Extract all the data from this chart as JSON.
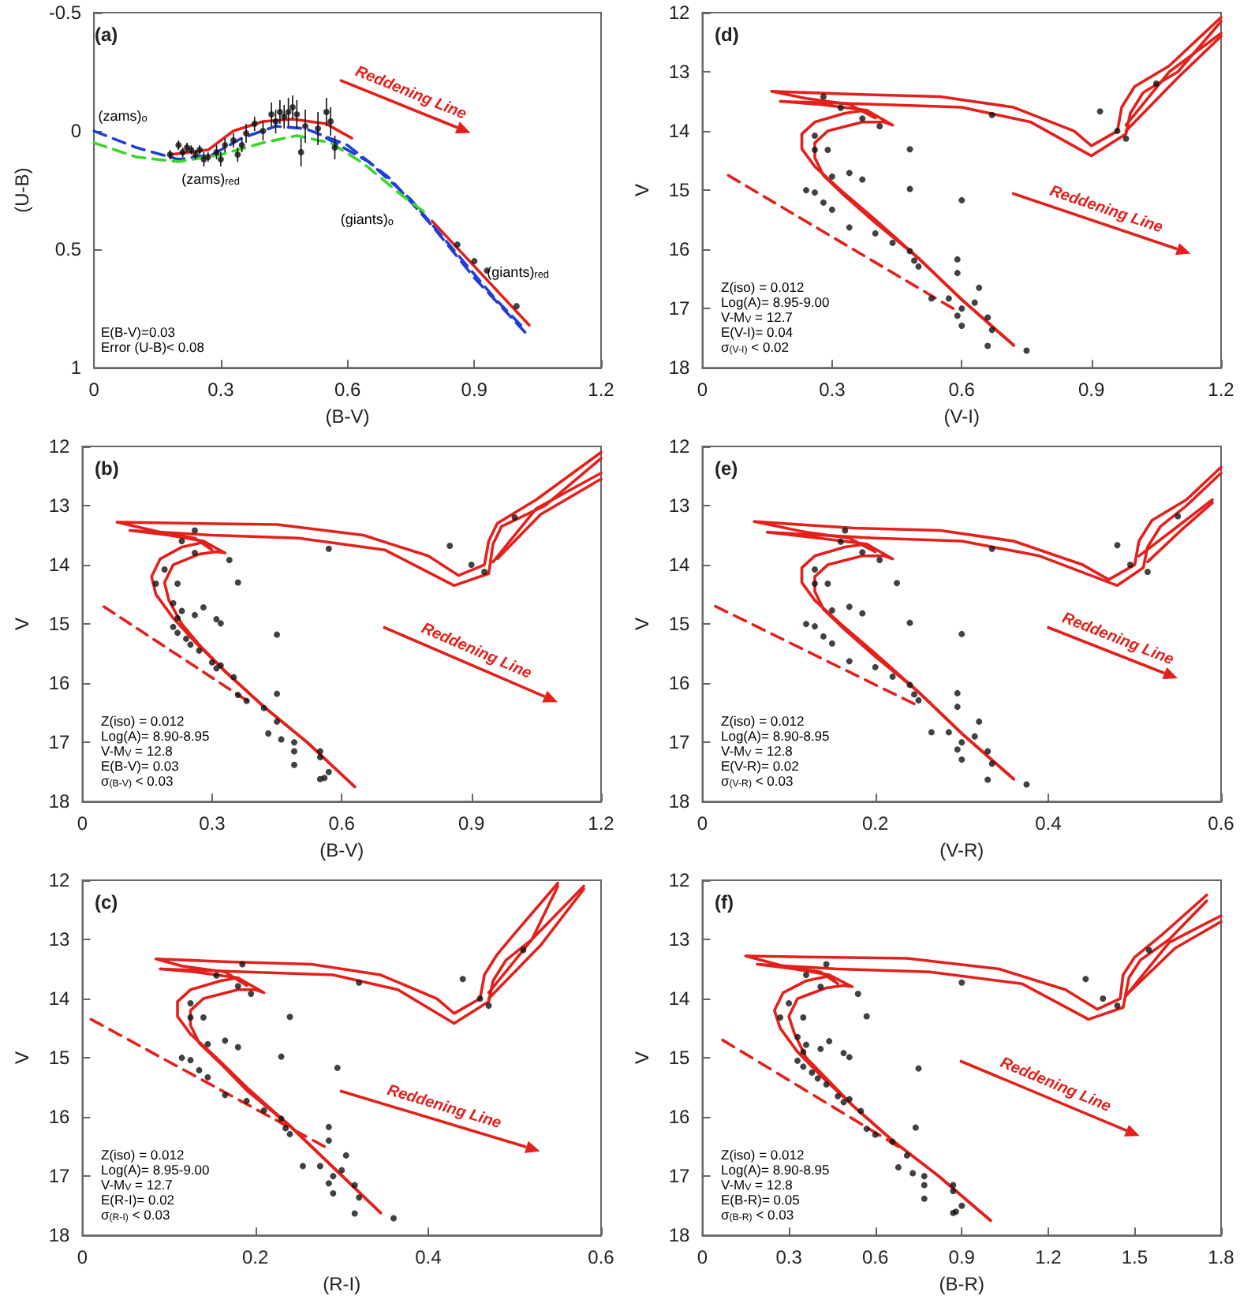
{
  "chart_data": [
    {
      "type": "scatter",
      "title": "(a)",
      "xlabel": "(B-V)",
      "ylabel": "(U-B)",
      "xlim": [
        0,
        1.2
      ],
      "ylim": [
        1,
        -0.5
      ],
      "xticks": [
        0,
        0.3,
        0.6,
        0.9,
        1.2
      ],
      "yticks": [
        -0.5,
        0,
        0.5,
        1
      ],
      "annotations": [
        "E(B-V)=0.03",
        "Error (U-B)< 0.08",
        {
          "text": "(zams)$_{o}$",
          "x": 0.01,
          "y": -0.03
        },
        {
          "text": "(zams)$_{red}$",
          "x": 0.2,
          "y": 0.13
        },
        {
          "text": "(giants)$_{o}$",
          "x": 0.8,
          "y": 0.4
        },
        {
          "text": "(giants)$_{red}$",
          "x": 0.93,
          "y": 0.63
        },
        "Reddening Line"
      ],
      "series": [
        {
          "type": "scatter",
          "color": "#111111",
          "marker": "circle",
          "x": [
            0.18,
            0.2,
            0.21,
            0.22,
            0.23,
            0.24,
            0.25,
            0.26,
            0.27,
            0.29,
            0.3,
            0.31,
            0.33,
            0.34,
            0.35,
            0.36,
            0.38,
            0.4,
            0.42,
            0.43,
            0.44,
            0.45,
            0.46,
            0.47,
            0.48,
            0.49,
            0.5,
            0.53,
            0.55,
            0.56,
            0.57
          ],
          "values": [
            0.1,
            0.06,
            0.09,
            0.07,
            0.08,
            0.1,
            0.08,
            0.12,
            0.11,
            0.09,
            0.12,
            0.06,
            0.04,
            0.1,
            0.06,
            0.01,
            -0.03,
            0.0,
            -0.07,
            -0.04,
            -0.08,
            -0.06,
            -0.08,
            -0.1,
            -0.07,
            0.09,
            -0.02,
            -0.01,
            -0.08,
            -0.04,
            0.07
          ],
          "errors": [
            0.02,
            0.02,
            0.02,
            0.02,
            0.02,
            0.02,
            0.02,
            0.03,
            0.02,
            0.03,
            0.03,
            0.03,
            0.03,
            0.03,
            0.03,
            0.04,
            0.03,
            0.04,
            0.05,
            0.05,
            0.05,
            0.05,
            0.06,
            0.05,
            0.06,
            0.06,
            0.07,
            0.07,
            0.06,
            0.06,
            0.05
          ]
        },
        {
          "type": "scatter",
          "color": "#111111",
          "marker": "circle",
          "x": [
            0.86,
            0.9,
            0.93,
            1.0
          ],
          "values": [
            0.48,
            0.55,
            0.59,
            0.74
          ]
        },
        {
          "type": "line",
          "color": "#e3201b",
          "line_style": "solid",
          "marker": "none",
          "x": [
            0.18,
            0.27,
            0.33,
            0.4,
            0.47,
            0.55,
            0.61,
            null,
            0.8,
            1.03
          ],
          "values": [
            0.1,
            0.08,
            0.0,
            -0.04,
            -0.05,
            -0.03,
            0.03,
            null,
            0.38,
            0.82
          ]
        },
        {
          "type": "line",
          "color": "#1f3fd6",
          "line_style": "dashed",
          "marker": "none",
          "x": [
            0,
            0.1,
            0.2,
            0.28,
            0.35,
            0.43,
            0.5,
            0.6,
            0.7,
            0.8,
            0.9,
            1.02
          ],
          "values": [
            0,
            0.07,
            0.12,
            0.1,
            0.03,
            -0.02,
            -0.01,
            0.06,
            0.2,
            0.4,
            0.62,
            0.85
          ]
        },
        {
          "type": "line",
          "color": "#1f3fd6",
          "line_style": "dashed",
          "marker": "none",
          "x": [
            0.55,
            0.65,
            0.75,
            0.85,
            0.95,
            1.01
          ],
          "values": [
            0.03,
            0.13,
            0.29,
            0.5,
            0.71,
            0.82
          ]
        },
        {
          "type": "line",
          "color": "#3bd62a",
          "line_style": "dashed",
          "marker": "none",
          "x": [
            0,
            0.1,
            0.2,
            0.3,
            0.4,
            0.48,
            0.56,
            0.64,
            0.72,
            0.78
          ],
          "values": [
            0.05,
            0.11,
            0.13,
            0.1,
            0.05,
            0.02,
            0.05,
            0.14,
            0.26,
            0.34
          ]
        }
      ]
    },
    {
      "type": "scatter",
      "title": "(d)",
      "xlabel": "(V-I)",
      "ylabel": "V",
      "xlim": [
        0,
        1.2
      ],
      "ylim": [
        18,
        12
      ],
      "xticks": [
        0,
        0.3,
        0.6,
        0.9,
        1.2
      ],
      "yticks": [
        12,
        13,
        14,
        15,
        16,
        17,
        18
      ],
      "annotations": [
        "Z(iso) = 0.012",
        "Log(A)= 8.95-9.00",
        "V-M$_{V}$ = 12.7",
        "E(V-I)= 0.04",
        "σ$_{(V-I)}$ < 0.02",
        "Reddening Line"
      ],
      "series": [
        {
          "type": "scatter",
          "color": "#111111",
          "marker": "circle",
          "x": [
            0.28,
            0.32,
            0.37,
            0.41,
            0.67,
            0.26,
            0.26,
            0.29,
            0.48,
            0.34,
            0.37,
            0.3,
            0.24,
            0.26,
            0.28,
            0.3,
            0.48,
            0.6,
            0.34,
            0.4,
            0.44,
            0.48,
            0.49,
            0.59,
            0.59,
            0.5,
            0.53,
            0.57,
            0.64,
            0.63,
            0.6,
            0.59,
            0.66,
            0.6,
            0.67,
            0.66,
            0.75
          ],
          "values": [
            13.42,
            13.61,
            13.79,
            13.92,
            13.73,
            14.08,
            14.32,
            14.32,
            14.31,
            14.71,
            14.82,
            14.77,
            15.0,
            15.04,
            15.21,
            15.33,
            14.98,
            15.17,
            15.63,
            15.73,
            15.89,
            16.03,
            16.19,
            16.17,
            16.4,
            16.29,
            16.83,
            16.83,
            16.65,
            16.9,
            17.0,
            17.12,
            17.15,
            17.29,
            17.36,
            17.63,
            17.71
          ]
        },
        {
          "type": "scatter",
          "color": "#111111",
          "marker": "circle",
          "x": [
            0.92,
            0.96,
            0.98,
            1.05
          ],
          "values": [
            13.67,
            14.0,
            14.13,
            13.2
          ]
        },
        {
          "type": "line",
          "color": "#e3201b",
          "line_style": "solid",
          "marker": "none",
          "x": [
            0.72,
            0.6,
            0.5,
            0.4,
            0.32,
            0.26,
            0.23,
            0.23,
            0.26,
            0.33,
            0.38,
            0.4,
            0.34,
            0.24,
            0.16,
            0.35,
            0.55,
            0.72,
            0.86,
            0.9,
            0.96,
            0.97,
            1.0,
            1.08,
            1.2,
            null,
            1.2,
            1.08,
            0.98
          ],
          "values": [
            17.62,
            16.85,
            16.15,
            15.5,
            15.0,
            14.6,
            14.3,
            14.05,
            13.85,
            13.7,
            13.65,
            13.78,
            13.55,
            13.45,
            13.33,
            13.38,
            13.42,
            13.6,
            14.0,
            14.25,
            14.0,
            13.6,
            13.25,
            12.9,
            12.08,
            null,
            12.35,
            13.0,
            13.9
          ]
        },
        {
          "type": "line",
          "color": "#e3201b",
          "line_style": "solid",
          "marker": "none",
          "x": [
            0.72,
            0.6,
            0.5,
            0.4,
            0.33,
            0.28,
            0.26,
            0.26,
            0.29,
            0.37,
            0.42,
            0.44,
            0.38,
            0.27,
            0.18,
            0.4,
            0.6,
            0.76,
            0.9,
            0.98,
            0.99,
            1.02,
            1.1,
            1.2,
            null,
            1.2,
            1.1,
            0.98
          ],
          "values": [
            17.62,
            16.85,
            16.15,
            15.55,
            15.1,
            14.75,
            14.45,
            14.2,
            14.0,
            13.85,
            13.85,
            13.9,
            13.65,
            13.55,
            13.5,
            13.55,
            13.6,
            13.85,
            14.42,
            14.05,
            13.7,
            13.35,
            13.0,
            12.15,
            null,
            12.4,
            13.1,
            14.0
          ]
        },
        {
          "type": "line",
          "color": "#e3201b",
          "line_style": "dashed",
          "marker": "none",
          "x": [
            0.06,
            0.58
          ],
          "values": [
            14.75,
            17.0
          ]
        }
      ]
    },
    {
      "type": "scatter",
      "title": "(b)",
      "xlabel": "(B-V)",
      "ylabel": "V",
      "xlim": [
        0,
        1.2
      ],
      "ylim": [
        18,
        12
      ],
      "xticks": [
        0,
        0.3,
        0.6,
        0.9,
        1.2
      ],
      "yticks": [
        12,
        13,
        14,
        15,
        16,
        17,
        18
      ],
      "annotations": [
        "Z(iso) = 0.012",
        "Log(A)= 8.90-8.95",
        "V-M$_{V}$ = 12.8",
        "E(B-V)= 0.03",
        "σ$_{(B-V)}$ < 0.03",
        "Reddening Line"
      ],
      "series": [
        {
          "type": "scatter",
          "color": "#111111",
          "marker": "circle",
          "x": [
            0.26,
            0.23,
            0.26,
            0.19,
            0.17,
            0.22,
            0.34,
            0.36,
            0.57,
            0.28,
            0.23,
            0.26,
            0.31,
            0.32,
            0.21,
            0.22,
            0.21,
            0.22,
            0.24,
            0.25,
            0.27,
            0.45,
            0.3,
            0.32,
            0.31,
            0.35,
            0.36,
            0.38,
            0.45,
            0.42,
            0.45,
            0.43,
            0.46,
            0.49,
            0.49,
            0.55,
            0.55,
            0.49,
            0.57,
            0.56,
            0.55
          ],
          "values": [
            13.42,
            13.6,
            13.8,
            14.08,
            14.32,
            14.32,
            13.92,
            14.3,
            13.73,
            14.72,
            14.78,
            14.85,
            14.92,
            14.99,
            14.65,
            14.9,
            15.05,
            15.15,
            15.25,
            15.35,
            15.45,
            15.18,
            15.65,
            15.7,
            15.75,
            15.9,
            16.2,
            16.3,
            16.18,
            16.42,
            16.65,
            16.85,
            16.95,
            17.0,
            17.15,
            17.15,
            17.25,
            17.38,
            17.5,
            17.6,
            17.62
          ]
        },
        {
          "type": "scatter",
          "color": "#111111",
          "marker": "circle",
          "x": [
            0.85,
            0.9,
            0.93,
            1.0
          ],
          "values": [
            13.68,
            14.0,
            14.12,
            13.2
          ]
        },
        {
          "type": "line",
          "color": "#e3201b",
          "line_style": "solid",
          "marker": "none",
          "x": [
            0.63,
            0.52,
            0.42,
            0.33,
            0.26,
            0.21,
            0.17,
            0.16,
            0.18,
            0.23,
            0.28,
            0.3,
            0.26,
            0.18,
            0.08,
            0.25,
            0.45,
            0.65,
            0.8,
            0.87,
            0.93,
            0.94,
            0.96,
            1.05,
            1.2,
            null,
            1.2,
            1.05,
            0.95
          ],
          "values": [
            17.75,
            17.0,
            16.4,
            15.8,
            15.3,
            14.9,
            14.5,
            14.2,
            13.9,
            13.7,
            13.62,
            13.75,
            13.55,
            13.45,
            13.28,
            13.3,
            13.32,
            13.5,
            13.85,
            14.18,
            14.0,
            13.6,
            13.3,
            12.9,
            12.1,
            null,
            12.45,
            13.05,
            13.95
          ]
        },
        {
          "type": "line",
          "color": "#e3201b",
          "line_style": "solid",
          "marker": "none",
          "x": [
            0.63,
            0.52,
            0.42,
            0.33,
            0.27,
            0.23,
            0.2,
            0.19,
            0.21,
            0.27,
            0.31,
            0.33,
            0.28,
            0.2,
            0.11,
            0.3,
            0.5,
            0.7,
            0.86,
            0.94,
            0.95,
            0.97,
            1.07,
            1.2,
            null,
            1.2,
            1.06,
            0.96
          ],
          "values": [
            17.75,
            17.0,
            16.4,
            15.8,
            15.35,
            15.0,
            14.6,
            14.3,
            14.0,
            13.82,
            13.78,
            13.8,
            13.6,
            13.5,
            13.42,
            13.5,
            13.55,
            13.75,
            14.35,
            14.15,
            13.65,
            13.35,
            13.0,
            12.2,
            null,
            12.55,
            13.15,
            13.9
          ]
        },
        {
          "type": "line",
          "color": "#e3201b",
          "line_style": "dashed",
          "marker": "none",
          "x": [
            0.05,
            0.38
          ],
          "values": [
            14.71,
            16.29
          ]
        }
      ]
    },
    {
      "type": "scatter",
      "title": "(e)",
      "xlabel": "(V-R)",
      "ylabel": "V",
      "xlim": [
        0,
        0.6
      ],
      "ylim": [
        18,
        12
      ],
      "xticks": [
        0,
        0.2,
        0.4,
        0.6
      ],
      "yticks": [
        12,
        13,
        14,
        15,
        16,
        17,
        18
      ],
      "annotations": [
        "Z(iso) = 0.012",
        "Log(A)= 8.90-8.95",
        "V-M$_{V}$ = 12.8",
        "E(V-R)= 0.02",
        "σ$_{(V-R)}$ < 0.03",
        "Reddening Line"
      ],
      "series": [
        {
          "type": "scatter",
          "color": "#111111",
          "marker": "circle",
          "x": [
            0.165,
            0.16,
            0.185,
            0.205,
            0.335,
            0.13,
            0.13,
            0.145,
            0.225,
            0.17,
            0.185,
            0.15,
            0.12,
            0.13,
            0.14,
            0.15,
            0.24,
            0.3,
            0.17,
            0.2,
            0.22,
            0.24,
            0.245,
            0.295,
            0.295,
            0.25,
            0.265,
            0.285,
            0.32,
            0.315,
            0.3,
            0.295,
            0.33,
            0.3,
            0.335,
            0.33,
            0.375
          ],
          "values": [
            13.42,
            13.61,
            13.79,
            13.92,
            13.73,
            14.08,
            14.32,
            14.32,
            14.31,
            14.71,
            14.82,
            14.77,
            15.0,
            15.04,
            15.21,
            15.33,
            14.98,
            15.17,
            15.63,
            15.73,
            15.89,
            16.03,
            16.19,
            16.17,
            16.4,
            16.29,
            16.83,
            16.83,
            16.65,
            16.9,
            17.0,
            17.12,
            17.15,
            17.29,
            17.36,
            17.63,
            17.71
          ]
        },
        {
          "type": "scatter",
          "color": "#111111",
          "marker": "circle",
          "x": [
            0.48,
            0.495,
            0.515,
            0.55
          ],
          "values": [
            13.67,
            14.0,
            14.12,
            13.18
          ]
        },
        {
          "type": "line",
          "color": "#e3201b",
          "line_style": "solid",
          "marker": "none",
          "x": [
            0.36,
            0.3,
            0.25,
            0.2,
            0.16,
            0.13,
            0.115,
            0.115,
            0.13,
            0.165,
            0.19,
            0.2,
            0.17,
            0.12,
            0.06,
            0.175,
            0.275,
            0.36,
            0.44,
            0.47,
            0.5,
            0.505,
            0.52,
            0.56,
            0.6,
            null,
            0.59,
            0.55,
            0.505
          ],
          "values": [
            17.62,
            16.85,
            16.15,
            15.5,
            15.0,
            14.6,
            14.3,
            14.05,
            13.85,
            13.7,
            13.65,
            13.78,
            13.55,
            13.45,
            13.27,
            13.38,
            13.42,
            13.6,
            14.0,
            14.25,
            14.0,
            13.6,
            13.25,
            12.9,
            12.35,
            null,
            12.9,
            13.35,
            13.85
          ]
        },
        {
          "type": "line",
          "color": "#e3201b",
          "line_style": "solid",
          "marker": "none",
          "x": [
            0.36,
            0.3,
            0.25,
            0.2,
            0.165,
            0.14,
            0.13,
            0.13,
            0.145,
            0.185,
            0.21,
            0.22,
            0.19,
            0.135,
            0.075,
            0.2,
            0.3,
            0.39,
            0.48,
            0.51,
            0.515,
            0.53,
            0.56,
            0.6,
            null,
            0.59,
            0.555,
            0.515
          ],
          "values": [
            17.62,
            16.85,
            16.15,
            15.55,
            15.1,
            14.75,
            14.45,
            14.2,
            14.0,
            13.85,
            13.85,
            13.9,
            13.65,
            13.55,
            13.45,
            13.55,
            13.6,
            13.85,
            14.35,
            14.05,
            13.7,
            13.35,
            13.0,
            12.45,
            null,
            12.95,
            13.4,
            13.95
          ]
        },
        {
          "type": "line",
          "color": "#e3201b",
          "line_style": "dashed",
          "marker": "none",
          "x": [
            0.015,
            0.245
          ],
          "values": [
            14.7,
            16.35
          ]
        }
      ]
    },
    {
      "type": "scatter",
      "title": "(c)",
      "xlabel": "(R-I)",
      "ylabel": "V",
      "xlim": [
        0,
        0.6
      ],
      "ylim": [
        18,
        12
      ],
      "xticks": [
        0,
        0.2,
        0.4,
        0.6
      ],
      "yticks": [
        12,
        13,
        14,
        15,
        16,
        17,
        18
      ],
      "annotations": [
        "Z(iso) = 0.012",
        "Log(A)= 8.95-9.00",
        "V-M$_{V}$ = 12.7",
        "E(R-I)= 0.02",
        "σ$_{(R-I)}$ < 0.03",
        "Reddening Line"
      ],
      "series": [
        {
          "type": "scatter",
          "color": "#111111",
          "marker": "circle",
          "x": [
            0.185,
            0.155,
            0.18,
            0.195,
            0.32,
            0.125,
            0.125,
            0.14,
            0.24,
            0.165,
            0.18,
            0.145,
            0.115,
            0.125,
            0.135,
            0.145,
            0.23,
            0.295,
            0.165,
            0.19,
            0.21,
            0.23,
            0.235,
            0.285,
            0.285,
            0.24,
            0.255,
            0.275,
            0.305,
            0.3,
            0.29,
            0.285,
            0.315,
            0.29,
            0.32,
            0.315,
            0.36
          ],
          "values": [
            13.42,
            13.61,
            13.79,
            13.92,
            13.73,
            14.08,
            14.32,
            14.32,
            14.31,
            14.71,
            14.82,
            14.77,
            15.0,
            15.04,
            15.21,
            15.33,
            14.98,
            15.17,
            15.63,
            15.73,
            15.89,
            16.03,
            16.19,
            16.17,
            16.4,
            16.29,
            16.83,
            16.83,
            16.65,
            16.9,
            17.0,
            17.12,
            17.15,
            17.29,
            17.36,
            17.63,
            17.71
          ]
        },
        {
          "type": "scatter",
          "color": "#111111",
          "marker": "circle",
          "x": [
            0.44,
            0.46,
            0.47,
            0.51
          ],
          "values": [
            13.67,
            14.0,
            14.12,
            13.18
          ]
        },
        {
          "type": "line",
          "color": "#e3201b",
          "line_style": "solid",
          "marker": "none",
          "x": [
            0.345,
            0.29,
            0.24,
            0.19,
            0.155,
            0.125,
            0.11,
            0.11,
            0.125,
            0.16,
            0.18,
            0.19,
            0.165,
            0.115,
            0.085,
            0.17,
            0.265,
            0.345,
            0.41,
            0.43,
            0.46,
            0.465,
            0.48,
            0.5,
            0.55,
            null,
            0.58,
            0.52,
            0.47
          ],
          "values": [
            17.62,
            16.85,
            16.15,
            15.5,
            15.0,
            14.6,
            14.3,
            14.05,
            13.85,
            13.7,
            13.65,
            13.78,
            13.55,
            13.45,
            13.33,
            13.38,
            13.42,
            13.6,
            14.0,
            14.25,
            14.0,
            13.6,
            13.25,
            12.9,
            12.05,
            null,
            12.1,
            13.0,
            13.9
          ]
        },
        {
          "type": "line",
          "color": "#e3201b",
          "line_style": "solid",
          "marker": "none",
          "x": [
            0.345,
            0.29,
            0.24,
            0.19,
            0.16,
            0.135,
            0.125,
            0.125,
            0.14,
            0.18,
            0.2,
            0.21,
            0.18,
            0.13,
            0.09,
            0.19,
            0.29,
            0.365,
            0.43,
            0.47,
            0.475,
            0.49,
            0.52,
            0.55,
            null,
            0.58,
            0.53,
            0.47
          ],
          "values": [
            17.62,
            16.85,
            16.15,
            15.55,
            15.1,
            14.75,
            14.45,
            14.2,
            14.0,
            13.85,
            13.85,
            13.9,
            13.65,
            13.55,
            13.5,
            13.55,
            13.6,
            13.85,
            14.42,
            14.05,
            13.7,
            13.35,
            13.0,
            12.1,
            null,
            12.15,
            13.1,
            14.0
          ]
        },
        {
          "type": "line",
          "color": "#e3201b",
          "line_style": "dashed",
          "marker": "none",
          "x": [
            0.01,
            0.28
          ],
          "values": [
            14.35,
            16.5
          ]
        }
      ]
    },
    {
      "type": "scatter",
      "title": "(f)",
      "xlabel": "(B-R)",
      "ylabel": "V",
      "xlim": [
        0,
        1.8
      ],
      "ylim": [
        18,
        12
      ],
      "xticks": [
        0,
        0.3,
        0.6,
        0.9,
        1.2,
        1.5,
        1.8
      ],
      "yticks": [
        12,
        13,
        14,
        15,
        16,
        17,
        18
      ],
      "annotations": [
        "Z(iso) = 0.012",
        "Log(A)= 8.90-8.95",
        "V-M$_{V}$ = 12.8",
        "E(B-R)= 0.05",
        "σ$_{(B-R)}$ < 0.03",
        "Reddening Line"
      ],
      "series": [
        {
          "type": "scatter",
          "color": "#111111",
          "marker": "circle",
          "x": [
            0.43,
            0.36,
            0.41,
            0.3,
            0.27,
            0.35,
            0.54,
            0.57,
            0.9,
            0.44,
            0.36,
            0.41,
            0.49,
            0.51,
            0.33,
            0.35,
            0.33,
            0.35,
            0.38,
            0.4,
            0.43,
            0.75,
            0.47,
            0.51,
            0.49,
            0.55,
            0.57,
            0.6,
            0.74,
            0.66,
            0.71,
            0.68,
            0.73,
            0.77,
            0.77,
            0.87,
            0.87,
            0.77,
            0.9,
            0.88,
            0.87
          ],
          "values": [
            13.42,
            13.6,
            13.8,
            14.08,
            14.32,
            14.32,
            13.92,
            14.3,
            13.73,
            14.72,
            14.78,
            14.85,
            14.92,
            14.99,
            14.65,
            14.9,
            15.05,
            15.15,
            15.25,
            15.35,
            15.45,
            15.18,
            15.65,
            15.7,
            15.75,
            15.9,
            16.2,
            16.3,
            16.18,
            16.42,
            16.65,
            16.85,
            16.95,
            17.0,
            17.15,
            17.15,
            17.25,
            17.38,
            17.5,
            17.6,
            17.62
          ]
        },
        {
          "type": "scatter",
          "color": "#111111",
          "marker": "circle",
          "x": [
            1.33,
            1.39,
            1.44,
            1.55
          ],
          "values": [
            13.67,
            14.0,
            14.12,
            13.18
          ]
        },
        {
          "type": "line",
          "color": "#e3201b",
          "line_style": "solid",
          "marker": "none",
          "x": [
            1.0,
            0.82,
            0.66,
            0.52,
            0.41,
            0.33,
            0.27,
            0.25,
            0.28,
            0.36,
            0.44,
            0.47,
            0.41,
            0.28,
            0.15,
            0.4,
            0.71,
            1.03,
            1.26,
            1.37,
            1.45,
            1.46,
            1.5,
            1.6,
            1.75,
            null,
            1.8,
            1.62,
            1.47
          ],
          "values": [
            17.75,
            17.0,
            16.4,
            15.8,
            15.3,
            14.9,
            14.5,
            14.2,
            13.9,
            13.7,
            13.62,
            13.75,
            13.55,
            13.45,
            13.28,
            13.3,
            13.32,
            13.5,
            13.85,
            14.18,
            14.0,
            13.6,
            13.3,
            12.9,
            12.25,
            null,
            12.6,
            13.05,
            13.95
          ]
        },
        {
          "type": "line",
          "color": "#e3201b",
          "line_style": "solid",
          "marker": "none",
          "x": [
            1.0,
            0.82,
            0.66,
            0.52,
            0.43,
            0.36,
            0.32,
            0.3,
            0.33,
            0.43,
            0.49,
            0.52,
            0.44,
            0.32,
            0.19,
            0.47,
            0.79,
            1.11,
            1.34,
            1.46,
            1.48,
            1.52,
            1.62,
            1.75,
            null,
            1.8,
            1.64,
            1.48
          ],
          "values": [
            17.75,
            17.0,
            16.4,
            15.8,
            15.35,
            15.0,
            14.6,
            14.3,
            14.0,
            13.82,
            13.78,
            13.8,
            13.6,
            13.5,
            13.42,
            13.5,
            13.55,
            13.75,
            14.35,
            14.15,
            13.65,
            13.35,
            13.0,
            12.35,
            null,
            12.7,
            13.15,
            13.9
          ]
        },
        {
          "type": "line",
          "color": "#e3201b",
          "line_style": "dashed",
          "marker": "none",
          "x": [
            0.07,
            0.68
          ],
          "values": [
            14.7,
            16.5
          ]
        }
      ]
    }
  ]
}
